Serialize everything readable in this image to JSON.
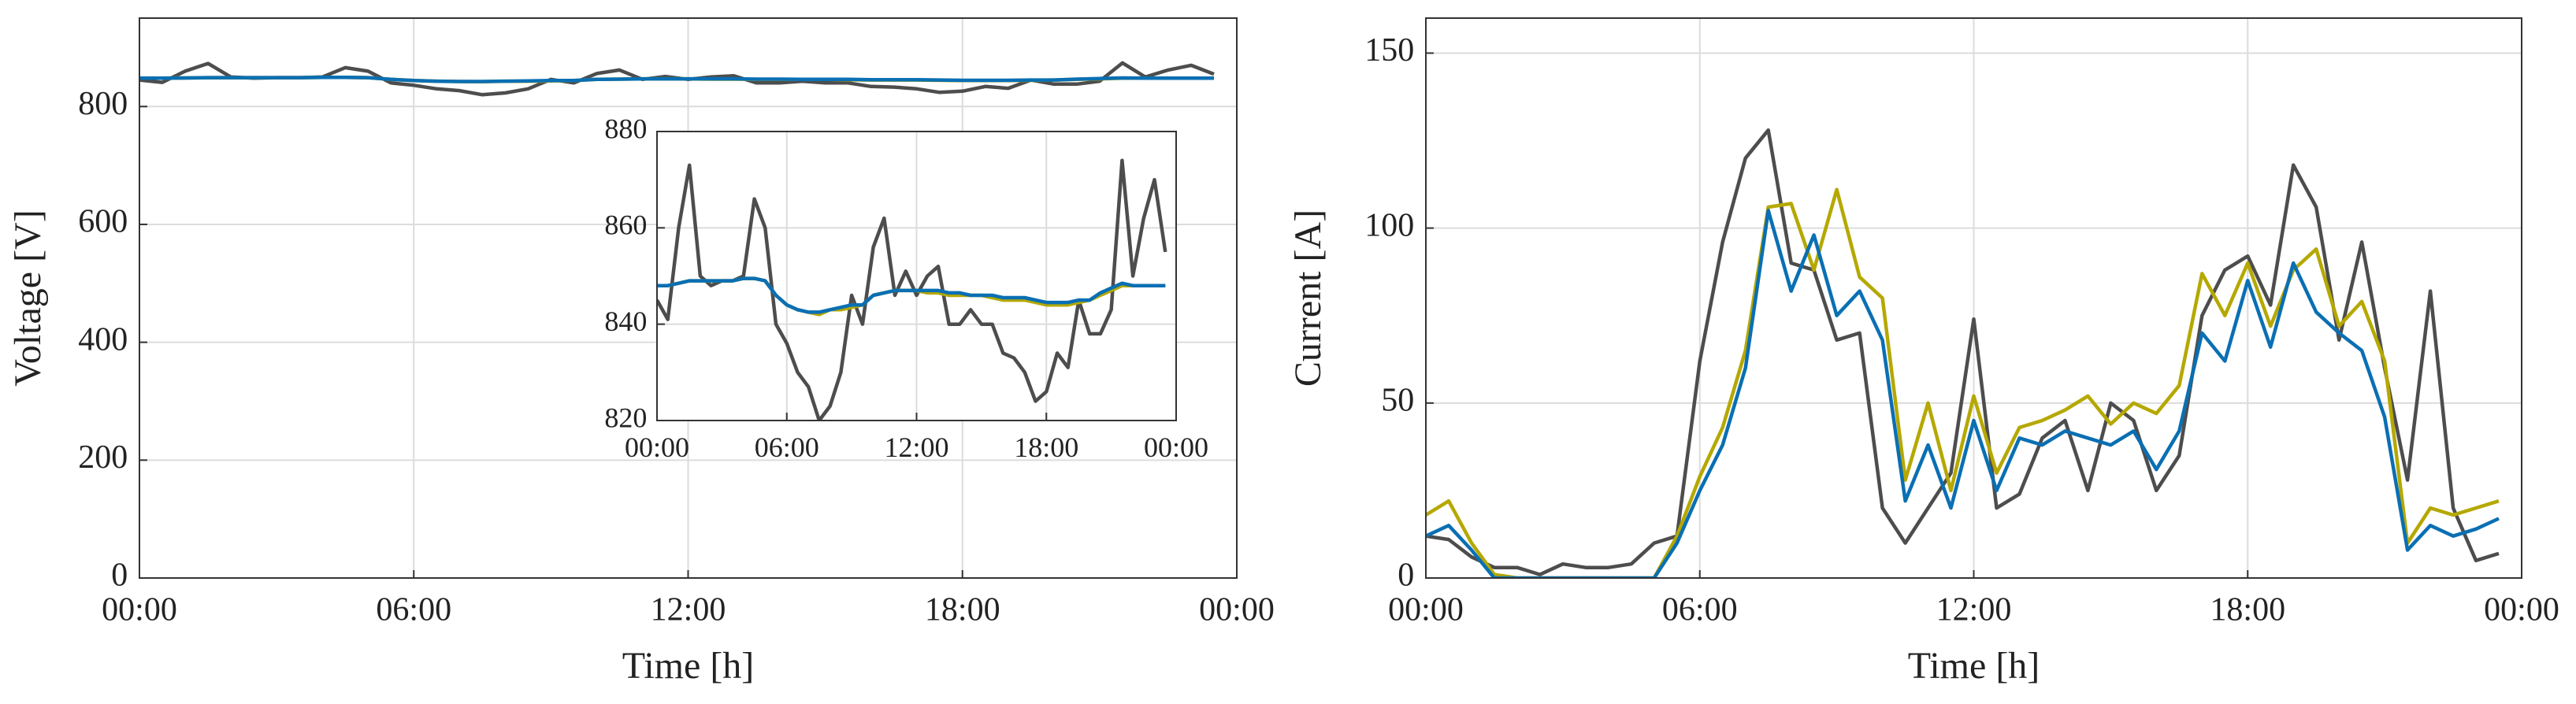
{
  "chart_data": [
    {
      "type": "line",
      "x": [
        0,
        0.5,
        1,
        1.5,
        2,
        2.5,
        3,
        3.5,
        4,
        4.5,
        5,
        5.5,
        6,
        6.5,
        7,
        7.5,
        8,
        8.5,
        9,
        9.5,
        10,
        10.5,
        11,
        11.5,
        12,
        12.5,
        13,
        13.5,
        14,
        14.5,
        15,
        15.5,
        16,
        16.5,
        17,
        17.5,
        18,
        18.5,
        19,
        19.5,
        20,
        20.5,
        21,
        21.5,
        22,
        22.5,
        23,
        23.5
      ],
      "series": [
        {
          "color": "#4d4d4d",
          "values": [
            845,
            841,
            860,
            873,
            850,
            848,
            849,
            849,
            850,
            866,
            860,
            840,
            836,
            830,
            827,
            820,
            823,
            830,
            846,
            840,
            856,
            862,
            846,
            851,
            846,
            850,
            852,
            840,
            840,
            843,
            840,
            840,
            834,
            833,
            830,
            824,
            826,
            834,
            831,
            845,
            838,
            838,
            843,
            874,
            850,
            862,
            870,
            855
          ]
        },
        {
          "color": "#b5a800",
          "values": [
            848,
            848,
            848.5,
            849,
            849,
            849,
            849,
            849,
            849.5,
            849.5,
            849,
            846,
            844,
            843,
            842.5,
            842,
            843,
            843,
            843.5,
            844,
            846,
            846.5,
            847,
            847,
            847,
            846.5,
            846.5,
            846,
            846,
            846,
            846,
            845.5,
            845,
            845,
            845,
            844.5,
            844,
            844,
            844,
            844.5,
            845,
            846,
            847,
            848,
            848,
            848,
            848,
            848
          ]
        },
        {
          "color": "#0a6fb3",
          "values": [
            848,
            848,
            848.5,
            849,
            849,
            849,
            849,
            849,
            849.5,
            849.5,
            849,
            846,
            844,
            843,
            842.5,
            842.5,
            843,
            843.5,
            844,
            844,
            846,
            846.5,
            847,
            847,
            847,
            847,
            847,
            846.5,
            846.5,
            846,
            846,
            846,
            845.5,
            845.5,
            845.5,
            845,
            844.5,
            844.5,
            844.5,
            845,
            845,
            846.5,
            847.5,
            848.5,
            848,
            848,
            848,
            848
          ]
        }
      ],
      "xlabel": "Time [h]",
      "ylabel": "Voltage [V]",
      "xlim": [
        0,
        24
      ],
      "xticks": [
        {
          "value": 0,
          "label": "00:00"
        },
        {
          "value": 6,
          "label": "06:00"
        },
        {
          "value": 12,
          "label": "12:00"
        },
        {
          "value": 18,
          "label": "18:00"
        },
        {
          "value": 24,
          "label": "00:00"
        }
      ],
      "ylim": [
        0,
        950
      ],
      "yticks": [
        0,
        200,
        400,
        600,
        800
      ],
      "grid": true,
      "inset": {
        "xlim": [
          0,
          24
        ],
        "xticks": [
          {
            "value": 0,
            "label": "00:00"
          },
          {
            "value": 6,
            "label": "06:00"
          },
          {
            "value": 12,
            "label": "12:00"
          },
          {
            "value": 18,
            "label": "18:00"
          },
          {
            "value": 24,
            "label": "00:00"
          }
        ],
        "ylim": [
          820,
          880
        ],
        "yticks": [
          820,
          840,
          860,
          880
        ],
        "grid": true
      }
    },
    {
      "type": "line",
      "x": [
        0,
        0.5,
        1,
        1.5,
        2,
        2.5,
        3,
        3.5,
        4,
        4.5,
        5,
        5.5,
        6,
        6.5,
        7,
        7.5,
        8,
        8.5,
        9,
        9.5,
        10,
        10.5,
        11,
        11.5,
        12,
        12.5,
        13,
        13.5,
        14,
        14.5,
        15,
        15.5,
        16,
        16.5,
        17,
        17.5,
        18,
        18.5,
        19,
        19.5,
        20,
        20.5,
        21,
        21.5,
        22,
        22.5,
        23,
        23.5
      ],
      "series": [
        {
          "color": "#4d4d4d",
          "values": [
            12,
            11,
            6,
            3,
            3,
            1,
            4,
            3,
            3,
            4,
            10,
            12,
            62,
            96,
            120,
            128,
            90,
            88,
            68,
            70,
            20,
            10,
            20,
            30,
            74,
            20,
            24,
            40,
            45,
            25,
            50,
            45,
            25,
            35,
            75,
            88,
            92,
            78,
            118,
            106,
            68,
            96,
            60,
            28,
            82,
            20,
            5,
            7
          ]
        },
        {
          "color": "#b5a800",
          "values": [
            18,
            22,
            10,
            1,
            0,
            0,
            0,
            0,
            0,
            0,
            0,
            12,
            29,
            43,
            65,
            106,
            107,
            88,
            111,
            86,
            80,
            28,
            50,
            25,
            52,
            30,
            43,
            45,
            48,
            52,
            44,
            50,
            47,
            55,
            87,
            75,
            90,
            72,
            88,
            94,
            72,
            79,
            62,
            10,
            20,
            18,
            20,
            22
          ]
        },
        {
          "color": "#0a6fb3",
          "values": [
            12,
            15,
            8,
            0,
            0,
            0,
            0,
            0,
            0,
            0,
            0,
            10,
            25,
            38,
            60,
            105,
            82,
            98,
            75,
            82,
            68,
            22,
            38,
            20,
            45,
            25,
            40,
            38,
            42,
            40,
            38,
            42,
            31,
            42,
            70,
            62,
            85,
            66,
            90,
            76,
            70,
            65,
            46,
            8,
            15,
            12,
            14,
            17
          ]
        }
      ],
      "xlabel": "Time [h]",
      "ylabel": "Current [A]",
      "xlim": [
        0,
        24
      ],
      "xticks": [
        {
          "value": 0,
          "label": "00:00"
        },
        {
          "value": 6,
          "label": "06:00"
        },
        {
          "value": 12,
          "label": "12:00"
        },
        {
          "value": 18,
          "label": "18:00"
        },
        {
          "value": 24,
          "label": "00:00"
        }
      ],
      "ylim": [
        0,
        160
      ],
      "yticks": [
        0,
        50,
        100,
        150
      ],
      "grid": true
    }
  ]
}
